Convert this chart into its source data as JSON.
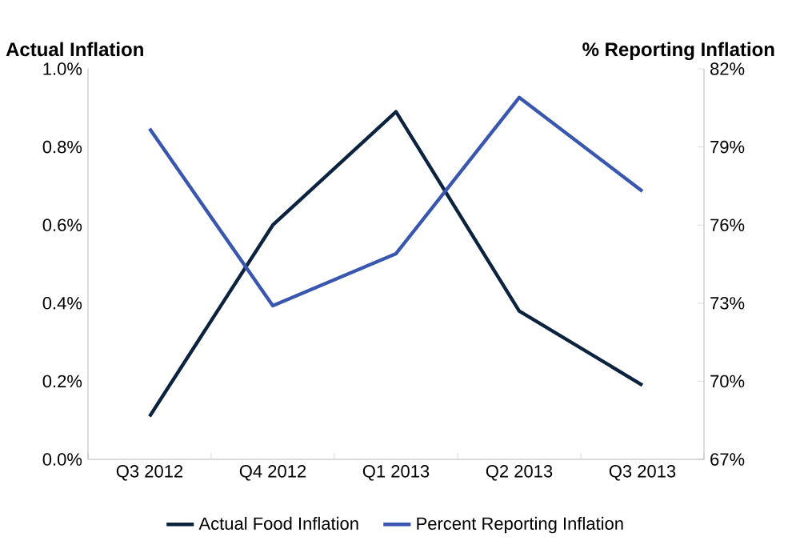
{
  "chart_data": {
    "type": "line",
    "ylabel": "Actual Inflation",
    "y2label": "% Reporting Inflation",
    "categories": [
      "Q3 2012",
      "Q4 2012",
      "Q1 2013",
      "Q2 2013",
      "Q3 2013"
    ],
    "series": [
      {
        "name": "Actual Food Inflation",
        "color": "#0c2340",
        "values": [
          0.11,
          0.6,
          0.89,
          0.38,
          0.19
        ]
      },
      {
        "name": "Percent Reporting Inflation",
        "color": "#3a57b0",
        "axis": "y2",
        "values": [
          79.7,
          72.9,
          74.9,
          80.9,
          77.3
        ]
      }
    ],
    "ylim": [
      0,
      1
    ],
    "yticks": [
      {
        "value": 0,
        "label": "0.0%"
      },
      {
        "value": 0.2,
        "label": "0.2%"
      },
      {
        "value": 0.4,
        "label": "0.4%"
      },
      {
        "value": 0.6,
        "label": "0.6%"
      },
      {
        "value": 0.8,
        "label": "0.8%"
      },
      {
        "value": 1,
        "label": "1.0%"
      }
    ],
    "y2lim": [
      67,
      82
    ],
    "y2ticks": [
      {
        "value": 67,
        "label": "67%"
      },
      {
        "value": 70,
        "label": "70%"
      },
      {
        "value": 73,
        "label": "73%"
      },
      {
        "value": 76,
        "label": "76%"
      },
      {
        "value": 79,
        "label": "79%"
      },
      {
        "value": 82,
        "label": "82%"
      }
    ],
    "grid": false,
    "legend": "bottom",
    "marker": "none",
    "line_style": "solid"
  }
}
